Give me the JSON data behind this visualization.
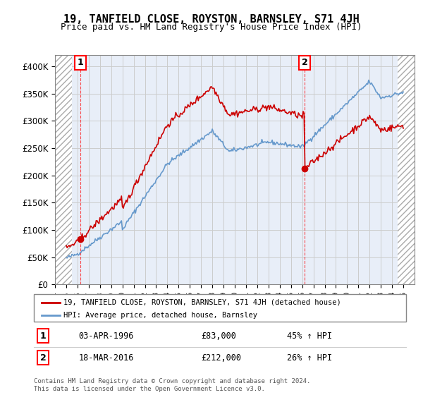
{
  "title": "19, TANFIELD CLOSE, ROYSTON, BARNSLEY, S71 4JH",
  "subtitle": "Price paid vs. HM Land Registry's House Price Index (HPI)",
  "property_label": "19, TANFIELD CLOSE, ROYSTON, BARNSLEY, S71 4JH (detached house)",
  "hpi_label": "HPI: Average price, detached house, Barnsley",
  "transaction1_date": "03-APR-1996",
  "transaction1_price": 83000,
  "transaction1_hpi": "45% ↑ HPI",
  "transaction2_date": "18-MAR-2016",
  "transaction2_price": 212000,
  "transaction2_hpi": "26% ↑ HPI",
  "footer": "Contains HM Land Registry data © Crown copyright and database right 2024.\nThis data is licensed under the Open Government Licence v3.0.",
  "property_color": "#cc0000",
  "hpi_color": "#6699cc",
  "ylim": [
    0,
    420000
  ],
  "yticks": [
    0,
    50000,
    100000,
    150000,
    200000,
    250000,
    300000,
    350000,
    400000
  ],
  "ytick_labels": [
    "£0",
    "£50K",
    "£100K",
    "£150K",
    "£200K",
    "£250K",
    "£300K",
    "£350K",
    "£400K"
  ],
  "grid_color": "#cccccc",
  "bg_color": "#e8eef8",
  "t1_year": 1996.25,
  "t2_year": 2016.21,
  "t1_price": 83000,
  "t2_price": 212000
}
